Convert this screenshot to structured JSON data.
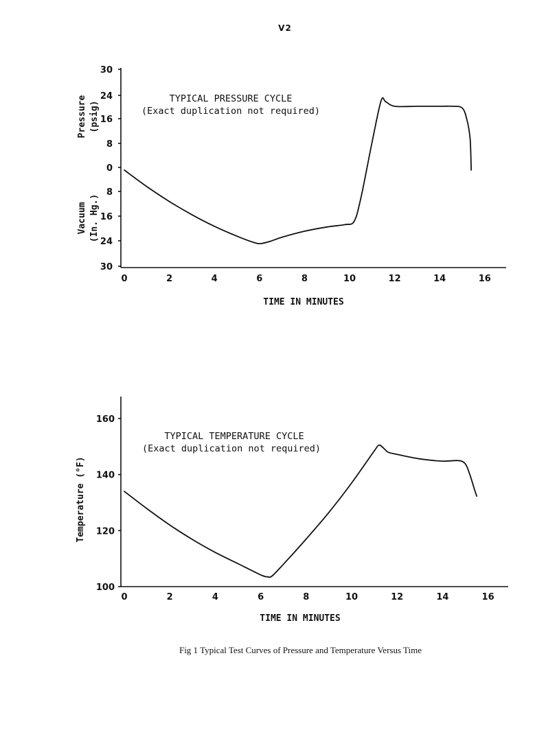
{
  "page": {
    "header": "V2"
  },
  "caption": "Fig 1   Typical Test Curves of Pressure and Temperature Versus Time",
  "chart_data": [
    {
      "type": "line",
      "title": "TYPICAL PRESSURE CYCLE",
      "subtitle": "(Exact duplication not required)",
      "xlabel": "TIME IN MINUTES",
      "ylabel_upper": [
        "Pressure",
        "(psig)"
      ],
      "ylabel_lower": [
        "Vacuum",
        "(In. Hg.)"
      ],
      "xlim": [
        0,
        17
      ],
      "x_ticks": [
        0,
        2,
        4,
        6,
        8,
        10,
        12,
        14,
        16
      ],
      "y_tick_labels": [
        "30",
        "24",
        "16",
        "8",
        "0",
        "8",
        "16",
        "24",
        "30"
      ],
      "ylim": [
        -30,
        30
      ],
      "y_unit_note": "positive = pressure (psig), negative = vacuum (In. Hg.)",
      "series": [
        {
          "x": [
            0,
            1,
            2,
            3,
            4,
            5,
            5.8,
            6.1,
            6.5,
            7,
            8,
            9,
            9.8,
            10.2,
            10.5,
            11.0,
            11.4,
            11.6,
            12,
            13,
            14,
            14.6,
            15.0,
            15.2,
            15.35,
            15.4
          ],
          "y": [
            -0.5,
            -5.5,
            -10,
            -14,
            -17.5,
            -20.5,
            -22.5,
            -22.7,
            -22,
            -20.8,
            -19,
            -17.7,
            -17,
            -16,
            -9,
            8,
            20.5,
            20.2,
            18.8,
            18.8,
            18.8,
            18.8,
            18.3,
            15,
            9,
            -0.5
          ]
        }
      ]
    },
    {
      "type": "line",
      "title": "TYPICAL TEMPERATURE CYCLE",
      "subtitle": "(Exact duplication not required)",
      "xlabel": "TIME IN MINUTES",
      "ylabel": "Temperature (°F)",
      "xlim": [
        0,
        17
      ],
      "ylim": [
        100,
        165
      ],
      "x_ticks": [
        0,
        2,
        4,
        6,
        8,
        10,
        12,
        14,
        16
      ],
      "y_ticks": [
        100,
        120,
        140,
        160
      ],
      "series": [
        {
          "x": [
            0,
            1,
            2,
            3,
            4,
            5,
            6,
            6.3,
            6.5,
            7,
            8,
            9,
            10,
            11,
            11.2,
            11.4,
            11.6,
            12,
            13,
            14,
            14.7,
            15.0,
            15.2,
            15.4,
            15.5
          ],
          "y": [
            134,
            127.8,
            122,
            116.8,
            112.2,
            108.2,
            104.2,
            103.5,
            103.8,
            108,
            117,
            126.5,
            137,
            148.5,
            150.5,
            149.5,
            148,
            147.2,
            145.6,
            144.8,
            145,
            143.8,
            140,
            134.8,
            132.3
          ]
        }
      ]
    }
  ]
}
